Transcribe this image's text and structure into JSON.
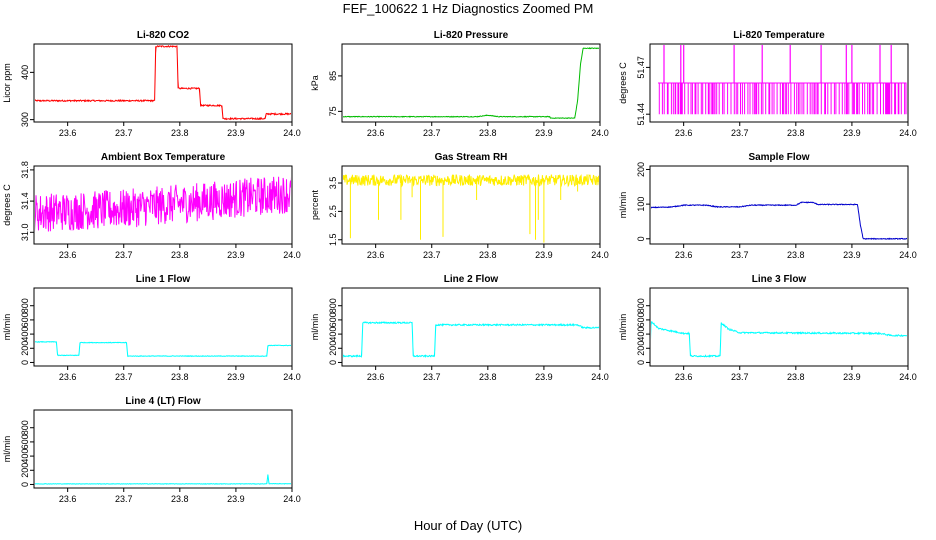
{
  "figure": {
    "title": "FEF_100622  1 Hz Diagnostics Zoomed PM",
    "xlabel": "Hour of Day (UTC)"
  },
  "chart_data": [
    {
      "type": "line",
      "title": "Li-820 CO2",
      "ylabel": "Licor ppm",
      "color": "#ff0000",
      "xlim": [
        23.54,
        24.0
      ],
      "ylim": [
        295,
        460
      ],
      "xticks": [
        "23.6",
        "23.7",
        "23.8",
        "23.9",
        "24.0"
      ],
      "yticks": [
        "300",
        "400"
      ],
      "ytick_values": [
        300,
        400
      ],
      "noise": 1.5,
      "points": [
        [
          23.54,
          340
        ],
        [
          23.755,
          340
        ],
        [
          23.757,
          455
        ],
        [
          23.795,
          455
        ],
        [
          23.797,
          366
        ],
        [
          23.835,
          366
        ],
        [
          23.837,
          330
        ],
        [
          23.875,
          330
        ],
        [
          23.877,
          302
        ],
        [
          23.952,
          302
        ],
        [
          23.954,
          312
        ],
        [
          24.0,
          312
        ]
      ]
    },
    {
      "type": "line",
      "title": "Li-820 Pressure",
      "ylabel": "kPa",
      "color": "#00bb00",
      "xlim": [
        23.54,
        24.0
      ],
      "ylim": [
        72,
        94
      ],
      "xticks": [
        "23.6",
        "23.7",
        "23.8",
        "23.9",
        "24.0"
      ],
      "yticks": [
        "75",
        "85"
      ],
      "ytick_values": [
        75,
        85
      ],
      "noise": 0.1,
      "points": [
        [
          23.54,
          73.5
        ],
        [
          23.78,
          73.5
        ],
        [
          23.8,
          73.9
        ],
        [
          23.82,
          73.5
        ],
        [
          23.91,
          73.5
        ],
        [
          23.912,
          73.1
        ],
        [
          23.955,
          73.1
        ],
        [
          23.96,
          78
        ],
        [
          23.965,
          88
        ],
        [
          23.97,
          92.8
        ],
        [
          24.0,
          92.8
        ]
      ]
    },
    {
      "type": "line",
      "title": "Li-820 Temperature",
      "ylabel": "degrees C",
      "color": "#ff00ff",
      "xlim": [
        23.54,
        24.0
      ],
      "ylim": [
        51.435,
        51.485
      ],
      "xticks": [
        "23.6",
        "23.7",
        "23.8",
        "23.9",
        "24.0"
      ],
      "yticks": [
        "51.44",
        "51.47"
      ],
      "ytick_values": [
        51.44,
        51.47
      ],
      "pattern": "square",
      "levels": [
        51.44,
        51.46
      ],
      "spikes": [
        23.565,
        23.595,
        23.6,
        23.69,
        23.74,
        23.79,
        23.845,
        23.89,
        23.9,
        23.95,
        23.97
      ]
    },
    {
      "type": "line",
      "title": "Ambient Box Temperature",
      "ylabel": "degrees C",
      "color": "#ff00ff",
      "xlim": [
        23.54,
        24.0
      ],
      "ylim": [
        30.85,
        31.85
      ],
      "xticks": [
        "23.6",
        "23.7",
        "23.8",
        "23.9",
        "24.0"
      ],
      "yticks": [
        "31.0",
        "31.4",
        "31.8"
      ],
      "ytick_values": [
        31.0,
        31.4,
        31.8
      ],
      "noise": 0.25,
      "points": [
        [
          23.54,
          31.25
        ],
        [
          23.7,
          31.3
        ],
        [
          23.85,
          31.4
        ],
        [
          24.0,
          31.5
        ]
      ]
    },
    {
      "type": "line",
      "title": "Gas Stream RH",
      "ylabel": "percent",
      "color": "#ffee00",
      "xlim": [
        23.54,
        24.0
      ],
      "ylim": [
        1.35,
        4.1
      ],
      "xticks": [
        "23.6",
        "23.7",
        "23.8",
        "23.9",
        "24.0"
      ],
      "yticks": [
        "1.5",
        "2.5",
        "3.5"
      ],
      "ytick_values": [
        1.5,
        2.5,
        3.5
      ],
      "noise": 0.2,
      "points": [
        [
          23.54,
          3.6
        ],
        [
          24.0,
          3.6
        ]
      ],
      "dips": [
        [
          23.555,
          1.55
        ],
        [
          23.605,
          2.2
        ],
        [
          23.645,
          2.2
        ],
        [
          23.665,
          3.0
        ],
        [
          23.68,
          1.5
        ],
        [
          23.72,
          1.6
        ],
        [
          23.78,
          2.9
        ],
        [
          23.875,
          1.7
        ],
        [
          23.885,
          1.5
        ],
        [
          23.89,
          2.2
        ],
        [
          23.9,
          1.4
        ],
        [
          23.93,
          2.9
        ],
        [
          23.96,
          3.2
        ]
      ]
    },
    {
      "type": "line",
      "title": "Sample Flow",
      "ylabel": "ml/min",
      "color": "#0000cc",
      "xlim": [
        23.54,
        24.0
      ],
      "ylim": [
        -15,
        210
      ],
      "xticks": [
        "23.6",
        "23.7",
        "23.8",
        "23.9",
        "24.0"
      ],
      "yticks": [
        "0",
        "100",
        "200"
      ],
      "ytick_values": [
        0,
        100,
        200
      ],
      "noise": 1.2,
      "points": [
        [
          23.54,
          90
        ],
        [
          23.58,
          92
        ],
        [
          23.6,
          97
        ],
        [
          23.64,
          97
        ],
        [
          23.66,
          92
        ],
        [
          23.7,
          92
        ],
        [
          23.72,
          97
        ],
        [
          23.8,
          97
        ],
        [
          23.81,
          105
        ],
        [
          23.83,
          105
        ],
        [
          23.84,
          99
        ],
        [
          23.91,
          99
        ],
        [
          23.915,
          40
        ],
        [
          23.92,
          0
        ],
        [
          24.0,
          0
        ]
      ]
    },
    {
      "type": "line",
      "title": "Line 1 Flow",
      "ylabel": "ml/min",
      "color": "#00ffff",
      "xlim": [
        23.54,
        24.0
      ],
      "ylim": [
        -50,
        1050
      ],
      "xticks": [
        "23.6",
        "23.7",
        "23.8",
        "23.9",
        "24.0"
      ],
      "yticks": [
        "0",
        "200",
        "400",
        "600",
        "800"
      ],
      "ytick_values": [
        0,
        200,
        400,
        600,
        800
      ],
      "noise": 4,
      "points": [
        [
          23.54,
          290
        ],
        [
          23.58,
          290
        ],
        [
          23.582,
          100
        ],
        [
          23.62,
          100
        ],
        [
          23.622,
          280
        ],
        [
          23.705,
          280
        ],
        [
          23.707,
          90
        ],
        [
          23.955,
          90
        ],
        [
          23.957,
          240
        ],
        [
          24.0,
          240
        ]
      ]
    },
    {
      "type": "line",
      "title": "Line 2 Flow",
      "ylabel": "ml/min",
      "color": "#00ffff",
      "xlim": [
        23.54,
        24.0
      ],
      "ylim": [
        -50,
        1050
      ],
      "xticks": [
        "23.6",
        "23.7",
        "23.8",
        "23.9",
        "24.0"
      ],
      "yticks": [
        "0",
        "200",
        "400",
        "600",
        "800"
      ],
      "ytick_values": [
        0,
        200,
        400,
        600,
        800
      ],
      "noise": 10,
      "points": [
        [
          23.54,
          550
        ],
        [
          23.541,
          90
        ],
        [
          23.575,
          90
        ],
        [
          23.577,
          560
        ],
        [
          23.665,
          560
        ],
        [
          23.667,
          90
        ],
        [
          23.705,
          90
        ],
        [
          23.707,
          530
        ],
        [
          23.96,
          530
        ],
        [
          23.97,
          490
        ],
        [
          24.0,
          490
        ]
      ]
    },
    {
      "type": "line",
      "title": "Line 3 Flow",
      "ylabel": "ml/min",
      "color": "#00ffff",
      "xlim": [
        23.54,
        24.0
      ],
      "ylim": [
        -50,
        1050
      ],
      "xticks": [
        "23.6",
        "23.7",
        "23.8",
        "23.9",
        "24.0"
      ],
      "yticks": [
        "0",
        "200",
        "400",
        "600",
        "800"
      ],
      "ytick_values": [
        0,
        200,
        400,
        600,
        800
      ],
      "noise": 10,
      "points": [
        [
          23.54,
          100
        ],
        [
          23.542,
          580
        ],
        [
          23.555,
          480
        ],
        [
          23.6,
          410
        ],
        [
          23.61,
          410
        ],
        [
          23.612,
          90
        ],
        [
          23.665,
          90
        ],
        [
          23.667,
          560
        ],
        [
          23.68,
          470
        ],
        [
          23.7,
          420
        ],
        [
          23.95,
          410
        ],
        [
          23.97,
          380
        ],
        [
          24.0,
          380
        ]
      ]
    },
    {
      "type": "line",
      "title": "Line 4 (LT) Flow",
      "ylabel": "ml/min",
      "color": "#00ffff",
      "xlim": [
        23.54,
        24.0
      ],
      "ylim": [
        -50,
        1050
      ],
      "xticks": [
        "23.6",
        "23.7",
        "23.8",
        "23.9",
        "24.0"
      ],
      "yticks": [
        "0",
        "200",
        "400",
        "600",
        "800"
      ],
      "ytick_values": [
        0,
        200,
        400,
        600,
        800
      ],
      "noise": 3,
      "points": [
        [
          23.54,
          8
        ],
        [
          23.955,
          8
        ],
        [
          23.957,
          140
        ],
        [
          23.959,
          10
        ],
        [
          24.0,
          10
        ]
      ]
    }
  ]
}
